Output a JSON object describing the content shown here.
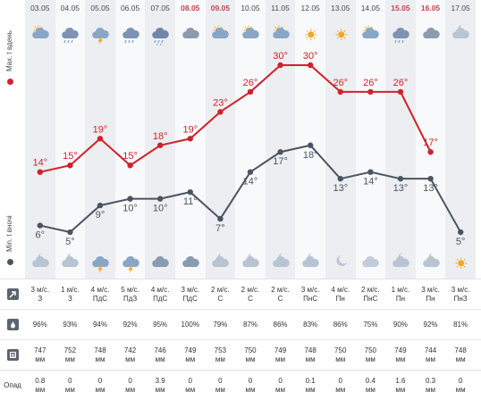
{
  "dates": [
    "03.05",
    "04.05",
    "05.05",
    "06.05",
    "07.05",
    "08.05",
    "09.05",
    "10.05",
    "11.05",
    "12.05",
    "13.05",
    "14.05",
    "15.05",
    "16.05",
    "17.05"
  ],
  "weekend": [
    false,
    false,
    false,
    false,
    false,
    true,
    true,
    false,
    false,
    false,
    false,
    false,
    true,
    true,
    false
  ],
  "axis": {
    "max_label": "Max. t вдень",
    "min_label": "Min. t вночі"
  },
  "day_icons": [
    "cloud-day-icon",
    "cloud-rain-icon",
    "cloud-thunder-icon",
    "cloud-rain-icon",
    "cloud-heavy-rain-icon",
    "cloud-icon",
    "cloud-day-icon",
    "cloud-day-icon",
    "cloud-day-icon",
    "sun-icon",
    "sun-icon",
    "cloud-day-icon",
    "cloud-rain-icon",
    "cloud-icon",
    "cloud-moon-icon"
  ],
  "night_icons": [
    "cloud-moon-icon",
    "cloud-moon-icon",
    "cloud-thunder-icon",
    "cloud-thunder-icon",
    "cloud-icon",
    "cloud-icon",
    "cloud-moon-icon",
    "cloud-moon-icon",
    "cloud-moon-icon",
    "cloud-moon-icon",
    "moon-icon",
    "cloud-light-icon",
    "cloud-moon-icon",
    "cloud-moon-icon",
    "sun-icon"
  ],
  "chart_data": {
    "type": "line",
    "categories": [
      "03.05",
      "04.05",
      "05.05",
      "06.05",
      "07.05",
      "08.05",
      "09.05",
      "10.05",
      "11.05",
      "12.05",
      "13.05",
      "14.05",
      "15.05",
      "16.05",
      "17.05"
    ],
    "series": [
      {
        "name": "Max. t вдень",
        "values": [
          14,
          15,
          19,
          15,
          18,
          19,
          23,
          26,
          30,
          30,
          26,
          26,
          26,
          17,
          null
        ],
        "color": "#d0222b"
      },
      {
        "name": "Min. t вночі",
        "values": [
          6,
          5,
          9,
          10,
          10,
          11,
          7,
          14,
          17,
          18,
          13,
          14,
          13,
          13,
          5
        ],
        "color": "#4a5563"
      }
    ],
    "labels_max": [
      "14°",
      "15°",
      "19°",
      "15°",
      "18°",
      "19°",
      "23°",
      "26°",
      "30°",
      "30°",
      "26°",
      "26°",
      "26°",
      "17°",
      ""
    ],
    "labels_min": [
      "6°",
      "5°",
      "9°",
      "10°",
      "10°",
      "11°",
      "7°",
      "14°",
      "17°",
      "18°",
      "13°",
      "14°",
      "13°",
      "13°",
      "5°"
    ],
    "ylim": [
      3,
      32
    ]
  },
  "wind": [
    "3 м/с. З",
    "1 м/с. З",
    "4 м/с. ПдС",
    "5 м/с. ПдЗ",
    "4 м/с. ПдС",
    "3 м/с. ПдС",
    "2 м/с. С",
    "2 м/с. С",
    "2 м/с. С",
    "3 м/с. ПнС",
    "4 м/с. Пн",
    "2 м/с. ПнС",
    "1 м/с. Пн",
    "3 м/с. Пн",
    "3 м/с. ПнЗ"
  ],
  "humidity": [
    "96%",
    "93%",
    "94%",
    "92%",
    "95%",
    "100%",
    "79%",
    "87%",
    "86%",
    "83%",
    "86%",
    "75%",
    "90%",
    "92%",
    "81%"
  ],
  "pressure": [
    "747 мм",
    "752 мм",
    "748 мм",
    "742 мм",
    "746 мм",
    "749 мм",
    "753 мм",
    "750 мм",
    "749 мм",
    "748 мм",
    "750 мм",
    "750 мм",
    "749 мм",
    "744 мм",
    "748 мм"
  ],
  "precip": [
    "0.8 мм",
    "0 мм",
    "0 мм",
    "0 мм",
    "3.9 мм",
    "0 мм",
    "0 мм",
    "0 мм",
    "0 мм",
    "0.1 мм",
    "0 мм",
    "0.4 мм",
    "1.6 мм",
    "0.3 мм",
    "0 мм"
  ],
  "rows": {
    "precip_label": "Опад"
  },
  "colors": {
    "max": "#d0222b",
    "min": "#4a5563",
    "icon": "#8aa6c6",
    "sun": "#f5a623"
  }
}
